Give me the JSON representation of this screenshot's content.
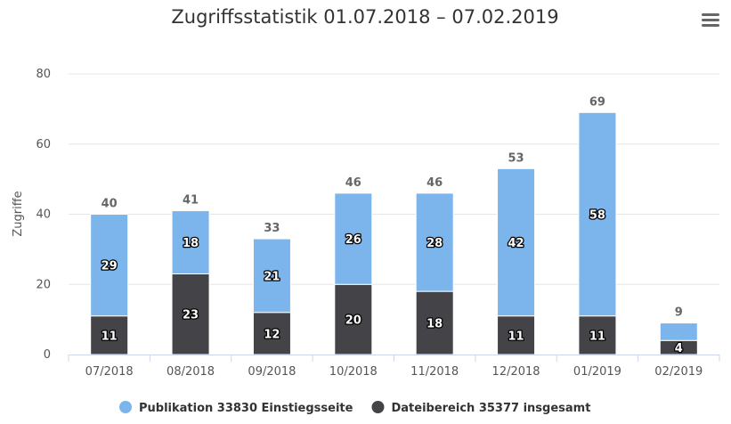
{
  "chart_data": {
    "type": "bar",
    "stacked": true,
    "title": "Zugriffsstatistik 01.07.2018 – 07.02.2019",
    "xlabel": "",
    "ylabel": "Zugriffe",
    "ylim": [
      0,
      80
    ],
    "yticks": [
      0,
      20,
      40,
      60,
      80
    ],
    "grid": true,
    "legend_position": "bottom",
    "categories": [
      "07/2018",
      "08/2018",
      "09/2018",
      "10/2018",
      "11/2018",
      "12/2018",
      "01/2019",
      "02/2019"
    ],
    "series": [
      {
        "name": "Dateibereich 35377 insgesamt",
        "color": "#434348",
        "values": [
          11,
          23,
          12,
          20,
          18,
          11,
          11,
          4
        ]
      },
      {
        "name": "Publikation 33830 Einstiegsseite",
        "color": "#7cb5ec",
        "values": [
          29,
          18,
          21,
          26,
          28,
          42,
          58,
          5
        ]
      }
    ],
    "totals": [
      40,
      41,
      33,
      46,
      46,
      53,
      69,
      9
    ],
    "segment_labels": {
      "Dateibereich 35377 insgesamt": [
        "11",
        "23",
        "12",
        "20",
        "18",
        "11",
        "11",
        "4"
      ],
      "Publikation 33830 Einstiegsseite": [
        "29",
        "18",
        "21",
        "26",
        "28",
        "42",
        "58",
        ""
      ]
    },
    "legend_order": [
      "Publikation 33830 Einstiegsseite",
      "Dateibereich 35377 insgesamt"
    ]
  },
  "menu_icon": "hamburger-menu-icon"
}
